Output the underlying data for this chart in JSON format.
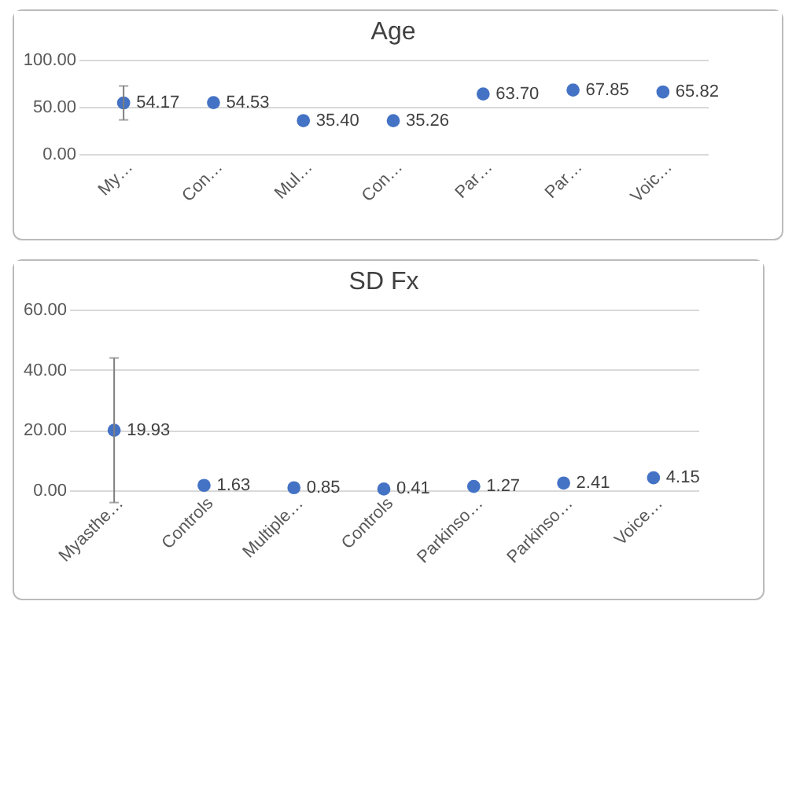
{
  "chart_data": [
    {
      "type": "scatter",
      "title": "Age",
      "categories": [
        "My…",
        "Con…",
        "Mul…",
        "Con…",
        "Par…",
        "Par…",
        "Voic…"
      ],
      "series": [
        {
          "color": "#4472c4",
          "values": [
            54.17,
            54.53,
            35.4,
            35.26,
            63.7,
            67.85,
            65.82
          ],
          "errors": [
            18,
            null,
            null,
            null,
            null,
            null,
            null
          ],
          "value_labels": [
            "54.17",
            "54.53",
            "35.40",
            "35.26",
            "63.70",
            "67.85",
            "65.82"
          ]
        }
      ],
      "ylim": [
        0,
        100
      ],
      "yticks": [
        {
          "value": 0,
          "label": "0.00"
        },
        {
          "value": 50,
          "label": "50.00"
        },
        {
          "value": 100,
          "label": "100.00"
        }
      ],
      "grid": "y",
      "marker": "circle"
    },
    {
      "type": "scatter",
      "title": "SD Fx",
      "categories": [
        "Myasthe…",
        "Controls",
        "Multiple…",
        "Controls",
        "Parkinso…",
        "Parkinso…",
        "Voice…"
      ],
      "series": [
        {
          "color": "#4472c4",
          "values": [
            19.93,
            1.63,
            0.85,
            0.41,
            1.27,
            2.41,
            4.15
          ],
          "errors": [
            24,
            null,
            null,
            null,
            null,
            null,
            null
          ],
          "value_labels": [
            "19.93",
            "1.63",
            "0.85",
            "0.41",
            "1.27",
            "2.41",
            "4.15"
          ]
        }
      ],
      "ylim": [
        0,
        60
      ],
      "yticks": [
        {
          "value": 0,
          "label": "0.00"
        },
        {
          "value": 20,
          "label": "20.00"
        },
        {
          "value": 40,
          "label": "40.00"
        },
        {
          "value": 60,
          "label": "60.00"
        }
      ],
      "grid": "y",
      "marker": "circle"
    }
  ]
}
